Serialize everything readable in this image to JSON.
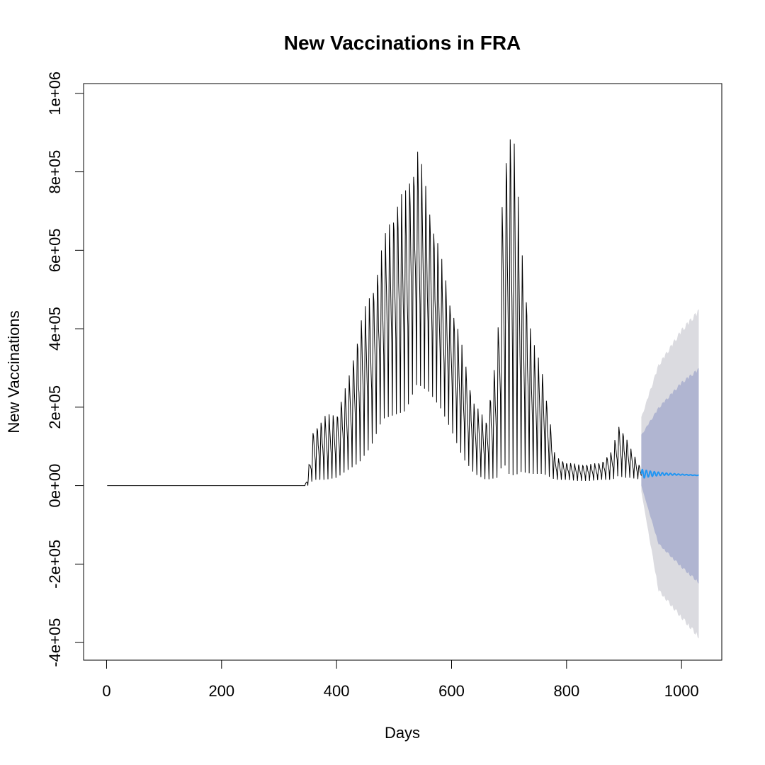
{
  "chart_data": {
    "type": "line",
    "title": "New Vaccinations in FRA",
    "xlabel": "Days",
    "ylabel": "New Vaccinations",
    "xlim": [
      -40,
      1070
    ],
    "ylim": [
      -445000,
      1025000
    ],
    "x_ticks": [
      0,
      200,
      400,
      600,
      800,
      1000
    ],
    "x_tick_labels": [
      "0",
      "200",
      "400",
      "600",
      "800",
      "1000"
    ],
    "y_ticks": [
      -400000,
      -200000,
      0,
      200000,
      400000,
      600000,
      800000,
      1000000
    ],
    "y_tick_labels": [
      "-4e+05",
      "-2e+05",
      "0e+00",
      "2e+05",
      "4e+05",
      "6e+05",
      "8e+05",
      "1e+06"
    ],
    "grid": false,
    "legend": "none",
    "colors": {
      "observed": "#000000",
      "forecast": "#2196F3",
      "band_80": "#B0B5D1",
      "band_95": "#DBDBE0"
    },
    "series": [
      {
        "kind": "observed",
        "style": "weekly-oscillating",
        "x": [
          1,
          345,
          350,
          360,
          380,
          400,
          420,
          440,
          460,
          480,
          500,
          520,
          540,
          560,
          580,
          600,
          620,
          640,
          660,
          680,
          690,
          700,
          710,
          720,
          740,
          760,
          780,
          800,
          820,
          840,
          860,
          880,
          890,
          900,
          910,
          930
        ],
        "high": [
          0,
          0,
          30000,
          150000,
          180000,
          190000,
          270000,
          420000,
          500000,
          620000,
          730000,
          760000,
          880000,
          740000,
          600000,
          470000,
          350000,
          210000,
          170000,
          360000,
          820000,
          960000,
          880000,
          650000,
          380000,
          290000,
          75000,
          60000,
          55000,
          55000,
          60000,
          90000,
          160000,
          140000,
          100000,
          45000
        ],
        "low": [
          0,
          0,
          0,
          15000,
          15000,
          20000,
          40000,
          60000,
          100000,
          170000,
          180000,
          190000,
          260000,
          240000,
          200000,
          140000,
          70000,
          30000,
          15000,
          20000,
          60000,
          30000,
          25000,
          35000,
          30000,
          30000,
          15000,
          15000,
          12000,
          12000,
          15000,
          15000,
          25000,
          20000,
          20000,
          15000
        ]
      },
      {
        "kind": "forecast",
        "x": [
          930,
          960,
          1000,
          1030
        ],
        "mean": [
          30000,
          30000,
          28000,
          26000
        ],
        "lower_80": [
          0,
          -150000,
          -210000,
          -250000
        ],
        "upper_80": [
          130000,
          200000,
          265000,
          300000
        ],
        "lower_95": [
          -15000,
          -270000,
          -340000,
          -390000
        ],
        "upper_95": [
          175000,
          310000,
          400000,
          450000
        ]
      }
    ]
  }
}
